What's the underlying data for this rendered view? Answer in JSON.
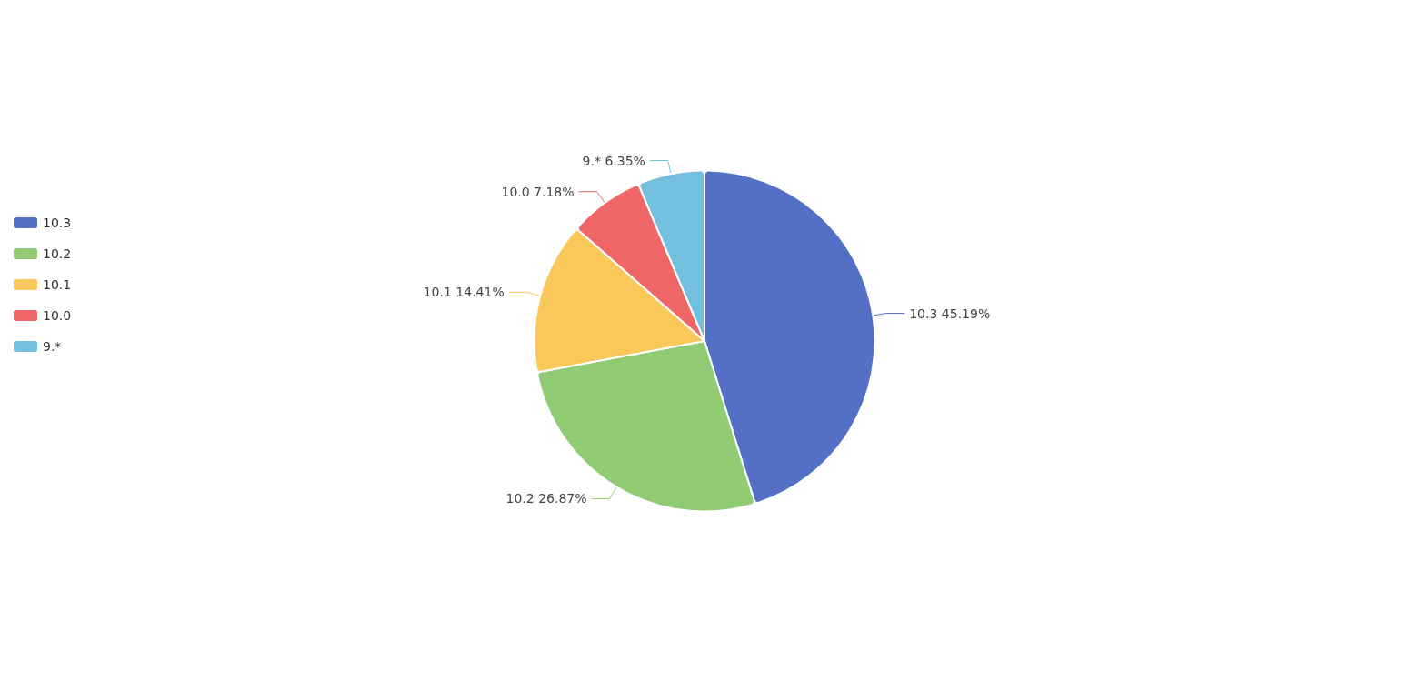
{
  "chart_data": {
    "type": "pie",
    "categories": [
      "10.3",
      "10.2",
      "10.1",
      "10.0",
      "9.*"
    ],
    "values": [
      45.19,
      26.87,
      14.41,
      7.18,
      6.35
    ],
    "value_labels": [
      "10.3 45.19%",
      "10.2 26.87%",
      "10.1 14.41%",
      "10.0 7.18%",
      "9.* 6.35%"
    ],
    "colors": [
      "#5470c6",
      "#91cc75",
      "#fac858",
      "#ee6666",
      "#73c0de"
    ],
    "legend": "left"
  }
}
